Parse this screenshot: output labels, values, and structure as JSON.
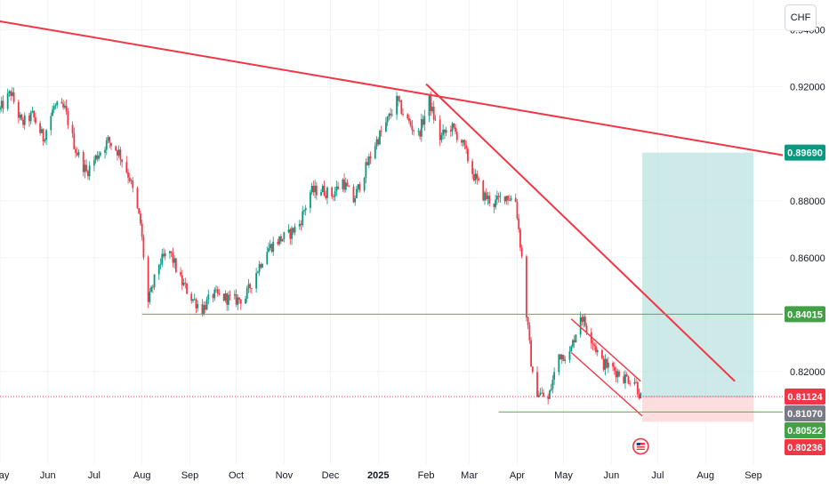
{
  "currency": "CHF",
  "colors": {
    "up": "#089981",
    "down": "#f23645",
    "trendline": "#f23645",
    "support": "#4caf50",
    "profit_zone": "#b2dfdb",
    "loss_zone": "#fcdada",
    "last_price": "#f23645",
    "grid": "#f0f3fa"
  },
  "chart_data": {
    "type": "candlestick",
    "x_range": [
      "2024-05-01",
      "2025-09-20"
    ],
    "y_range": [
      0.7875,
      0.9505
    ],
    "y_ticks": [
      0.94,
      0.92,
      0.88,
      0.86,
      0.82
    ],
    "y_tick_labels": [
      "0.94000",
      "0.92000",
      "0.88000",
      "0.86000",
      "0.82000"
    ],
    "x_labels": [
      {
        "date": "2024-05-01",
        "label": "May"
      },
      {
        "date": "2024-06-01",
        "label": "Jun"
      },
      {
        "date": "2024-07-01",
        "label": "Jul"
      },
      {
        "date": "2024-08-01",
        "label": "Aug"
      },
      {
        "date": "2024-09-01",
        "label": "Sep"
      },
      {
        "date": "2024-10-01",
        "label": "Oct"
      },
      {
        "date": "2024-11-01",
        "label": "Nov"
      },
      {
        "date": "2024-12-01",
        "label": "Dec"
      },
      {
        "date": "2025-01-01",
        "label": "2025",
        "bold": true
      },
      {
        "date": "2025-02-01",
        "label": "Feb"
      },
      {
        "date": "2025-03-01",
        "label": "Mar"
      },
      {
        "date": "2025-04-01",
        "label": "Apr"
      },
      {
        "date": "2025-05-01",
        "label": "May"
      },
      {
        "date": "2025-06-01",
        "label": "Jun"
      },
      {
        "date": "2025-07-01",
        "label": "Jul"
      },
      {
        "date": "2025-08-01",
        "label": "Aug"
      },
      {
        "date": "2025-09-01",
        "label": "Sep"
      }
    ],
    "price_path": [
      [
        "2024-05-01",
        0.912
      ],
      [
        "2024-05-08",
        0.918
      ],
      [
        "2024-05-15",
        0.907
      ],
      [
        "2024-05-22",
        0.91
      ],
      [
        "2024-05-29",
        0.902
      ],
      [
        "2024-06-05",
        0.913
      ],
      [
        "2024-06-12",
        0.912
      ],
      [
        "2024-06-19",
        0.898
      ],
      [
        "2024-06-26",
        0.89
      ],
      [
        "2024-07-03",
        0.896
      ],
      [
        "2024-07-10",
        0.901
      ],
      [
        "2024-07-17",
        0.897
      ],
      [
        "2024-07-24",
        0.888
      ],
      [
        "2024-07-31",
        0.872
      ],
      [
        "2024-08-05",
        0.844
      ],
      [
        "2024-08-12",
        0.858
      ],
      [
        "2024-08-19",
        0.862
      ],
      [
        "2024-08-26",
        0.852
      ],
      [
        "2024-09-02",
        0.846
      ],
      [
        "2024-09-09",
        0.842
      ],
      [
        "2024-09-16",
        0.847
      ],
      [
        "2024-09-23",
        0.846
      ],
      [
        "2024-09-30",
        0.845
      ],
      [
        "2024-10-07",
        0.846
      ],
      [
        "2024-10-14",
        0.855
      ],
      [
        "2024-10-21",
        0.863
      ],
      [
        "2024-10-28",
        0.866
      ],
      [
        "2024-11-04",
        0.868
      ],
      [
        "2024-11-11",
        0.872
      ],
      [
        "2024-11-18",
        0.883
      ],
      [
        "2024-11-25",
        0.884
      ],
      [
        "2024-12-02",
        0.882
      ],
      [
        "2024-12-09",
        0.887
      ],
      [
        "2024-12-16",
        0.88
      ],
      [
        "2024-12-23",
        0.89
      ],
      [
        "2024-12-30",
        0.9
      ],
      [
        "2025-01-06",
        0.907
      ],
      [
        "2025-01-13",
        0.915
      ],
      [
        "2025-01-20",
        0.908
      ],
      [
        "2025-01-27",
        0.903
      ],
      [
        "2025-02-03",
        0.915
      ],
      [
        "2025-02-10",
        0.902
      ],
      [
        "2025-02-17",
        0.906
      ],
      [
        "2025-02-24",
        0.901
      ],
      [
        "2025-03-03",
        0.89
      ],
      [
        "2025-03-10",
        0.882
      ],
      [
        "2025-03-17",
        0.879
      ],
      [
        "2025-03-24",
        0.882
      ],
      [
        "2025-03-31",
        0.88
      ],
      [
        "2025-04-04",
        0.86
      ],
      [
        "2025-04-07",
        0.84
      ],
      [
        "2025-04-11",
        0.818
      ],
      [
        "2025-04-14",
        0.813
      ],
      [
        "2025-04-21",
        0.81
      ],
      [
        "2025-04-28",
        0.826
      ],
      [
        "2025-05-05",
        0.826
      ],
      [
        "2025-05-12",
        0.84
      ],
      [
        "2025-05-19",
        0.832
      ],
      [
        "2025-05-26",
        0.823
      ],
      [
        "2025-06-02",
        0.821
      ],
      [
        "2025-06-09",
        0.818
      ],
      [
        "2025-06-16",
        0.817
      ],
      [
        "2025-06-20",
        0.811
      ]
    ],
    "trendlines": [
      {
        "name": "major-downtrend",
        "from": [
          "2024-05-01",
          0.943
        ],
        "to": [
          "2025-09-20",
          0.896
        ]
      },
      {
        "name": "minor-downtrend",
        "from": [
          "2025-02-01",
          0.921
        ],
        "to": [
          "2025-08-20",
          0.8166
        ]
      },
      {
        "name": "channel-upper",
        "from": [
          "2025-05-06",
          0.8385
        ],
        "to": [
          "2025-06-20",
          0.8166
        ]
      },
      {
        "name": "channel-lower",
        "from": [
          "2025-05-06",
          0.8267
        ],
        "to": [
          "2025-06-21",
          0.8044
        ]
      }
    ],
    "support_lines": [
      {
        "name": "support-084015",
        "from": "2024-08-01",
        "value": 0.84015
      },
      {
        "name": "support-lower",
        "from": "2025-03-20",
        "value": 0.8058
      }
    ],
    "position": {
      "start": "2025-06-21",
      "end": "2025-09-01",
      "entry": 0.81124,
      "target": 0.8969,
      "stop": 0.80236
    },
    "last_price": 0.81124,
    "price_tags": [
      {
        "value": 0.8969,
        "label": "0.89690",
        "color": "#089981"
      },
      {
        "value": 0.84015,
        "label": "0.84015",
        "color": "#43a047"
      },
      {
        "value": 0.81124,
        "label": "0.81124",
        "color": "#f23645"
      },
      {
        "value": 0.8107,
        "label": "0.81070",
        "color": "#787b86"
      },
      {
        "value": 0.80522,
        "label": "0.80522",
        "color": "#43a047"
      },
      {
        "value": 0.80236,
        "label": "0.80236",
        "color": "#f23645"
      }
    ],
    "event_marker_date": "2025-06-20"
  }
}
